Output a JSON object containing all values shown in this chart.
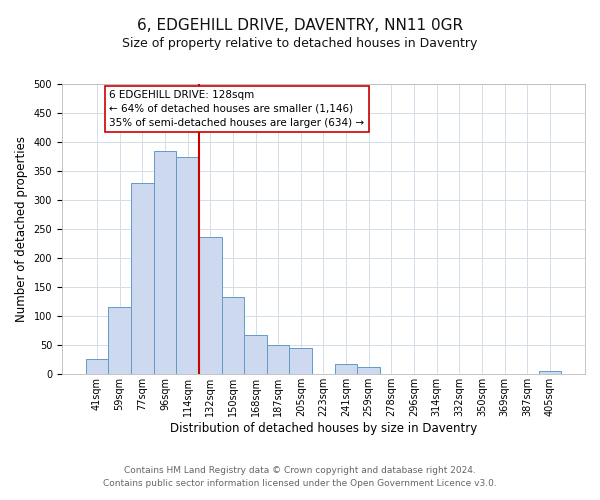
{
  "title": "6, EDGEHILL DRIVE, DAVENTRY, NN11 0GR",
  "subtitle": "Size of property relative to detached houses in Daventry",
  "xlabel": "Distribution of detached houses by size in Daventry",
  "ylabel": "Number of detached properties",
  "bar_labels": [
    "41sqm",
    "59sqm",
    "77sqm",
    "96sqm",
    "114sqm",
    "132sqm",
    "150sqm",
    "168sqm",
    "187sqm",
    "205sqm",
    "223sqm",
    "241sqm",
    "259sqm",
    "278sqm",
    "296sqm",
    "314sqm",
    "332sqm",
    "350sqm",
    "369sqm",
    "387sqm",
    "405sqm"
  ],
  "bar_values": [
    27,
    116,
    330,
    385,
    375,
    237,
    133,
    68,
    50,
    45,
    0,
    18,
    13,
    0,
    0,
    0,
    0,
    0,
    0,
    0,
    5
  ],
  "bar_color": "#ccd9ef",
  "bar_edge_color": "#6399c8",
  "vline_color": "#cc0000",
  "annotation_title": "6 EDGEHILL DRIVE: 128sqm",
  "annotation_line1": "← 64% of detached houses are smaller (1,146)",
  "annotation_line2": "35% of semi-detached houses are larger (634) →",
  "annotation_box_color": "#ffffff",
  "annotation_box_edge": "#cc0000",
  "ylim": [
    0,
    500
  ],
  "yticks": [
    0,
    50,
    100,
    150,
    200,
    250,
    300,
    350,
    400,
    450,
    500
  ],
  "footnote1": "Contains HM Land Registry data © Crown copyright and database right 2024.",
  "footnote2": "Contains public sector information licensed under the Open Government Licence v3.0.",
  "background_color": "#ffffff",
  "grid_color": "#d4dce8",
  "title_fontsize": 11,
  "subtitle_fontsize": 9,
  "axis_label_fontsize": 8.5,
  "tick_fontsize": 7,
  "annotation_fontsize": 7.5,
  "footnote_fontsize": 6.5
}
